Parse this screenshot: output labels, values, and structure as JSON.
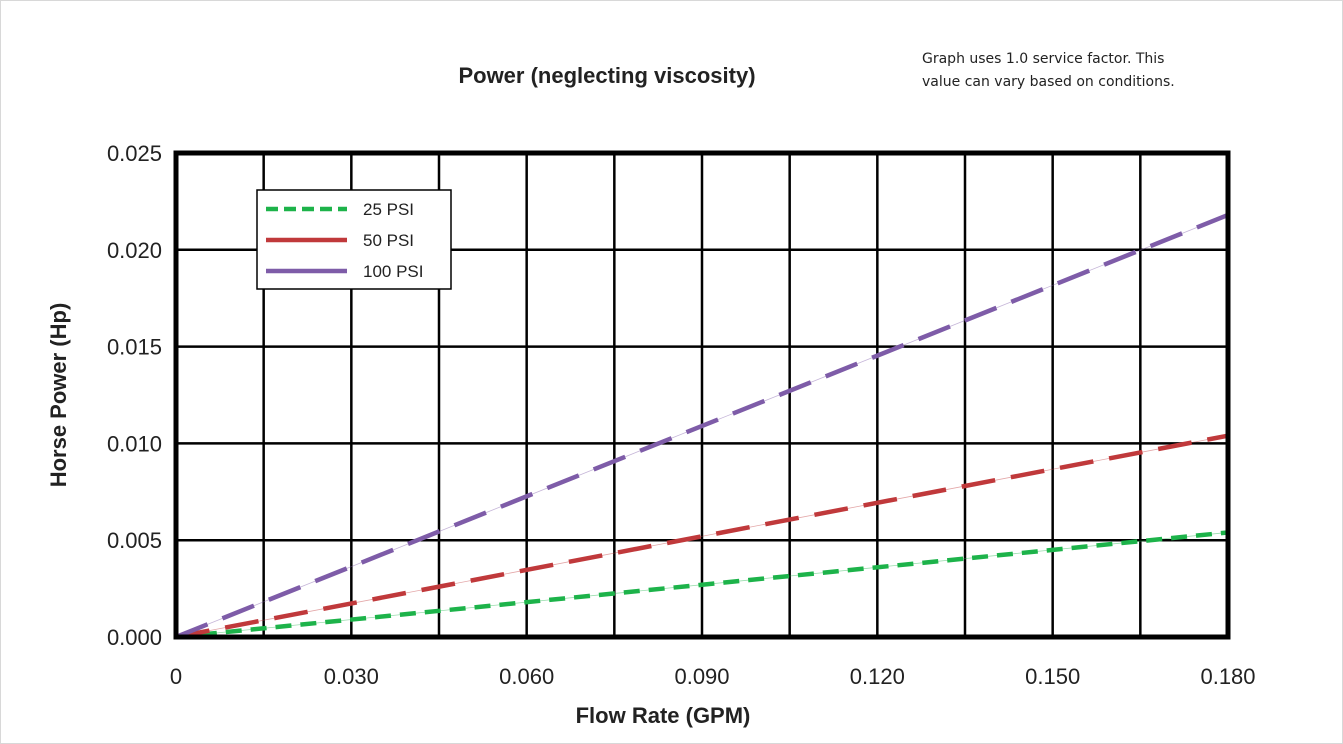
{
  "chart_data": {
    "type": "line",
    "title": "Power (neglecting viscosity)",
    "note": "Graph uses  1.0 service factor. This value can vary based on conditions.",
    "note_lines": [
      "Graph uses  1.0 service factor. This",
      "value can vary based on conditions."
    ],
    "xlabel": "Flow Rate (GPM)",
    "ylabel": "Horse Power (Hp)",
    "xlim": [
      0,
      0.18
    ],
    "ylim": [
      0,
      0.025
    ],
    "x_ticks": [
      0,
      0.015,
      0.03,
      0.045,
      0.06,
      0.075,
      0.09,
      0.105,
      0.12,
      0.135,
      0.15,
      0.165,
      0.18
    ],
    "x_tick_labels": [
      "0",
      "0.030",
      "0.060",
      "0.090",
      "0.120",
      "0.150",
      "0.180"
    ],
    "x_tick_label_values": [
      0,
      0.03,
      0.06,
      0.09,
      0.12,
      0.15,
      0.18
    ],
    "y_ticks": [
      0,
      0.005,
      0.01,
      0.015,
      0.02,
      0.025
    ],
    "y_tick_labels": [
      "0.000",
      "0.005",
      "0.010",
      "0.015",
      "0.020",
      "0.025"
    ],
    "grid": true,
    "legend_position": "top-left",
    "series": [
      {
        "name": "25 PSI",
        "color": "#1db34a",
        "dash": "short",
        "x": [
          0,
          0.18
        ],
        "y": [
          0,
          0.0054
        ]
      },
      {
        "name": "50 PSI",
        "color": "#c0393b",
        "dash": "long",
        "x": [
          0,
          0.18
        ],
        "y": [
          0,
          0.0104
        ]
      },
      {
        "name": "100 PSI",
        "color": "#7e5ca8",
        "dash": "long",
        "x": [
          0,
          0.18
        ],
        "y": [
          0,
          0.0218
        ]
      }
    ]
  }
}
